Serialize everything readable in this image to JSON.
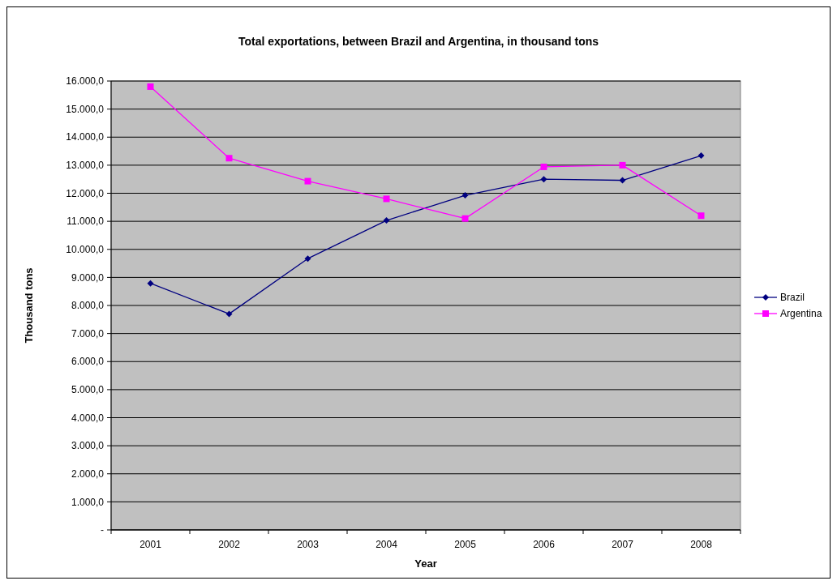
{
  "chart_data": {
    "type": "line",
    "title": "Total exportations, between Brazil and Argentina, in thousand tons",
    "xlabel": "Year",
    "ylabel": "Thousand tons",
    "categories": [
      "2001",
      "2002",
      "2003",
      "2004",
      "2005",
      "2006",
      "2007",
      "2008"
    ],
    "series": [
      {
        "name": "Brazil",
        "color": "#000080",
        "marker": "diamond",
        "values": [
          8790,
          7700,
          9670,
          11030,
          11925,
          12500,
          12460,
          13340
        ]
      },
      {
        "name": "Argentina",
        "color": "#ff00ff",
        "marker": "square",
        "values": [
          15800,
          13250,
          12430,
          11800,
          11100,
          12940,
          13000,
          11200
        ]
      }
    ],
    "ylim": [
      0,
      16000
    ],
    "yticks": [
      {
        "value": 0,
        "label": "-"
      },
      {
        "value": 1000,
        "label": "1.000,0"
      },
      {
        "value": 2000,
        "label": "2.000,0"
      },
      {
        "value": 3000,
        "label": "3.000,0"
      },
      {
        "value": 4000,
        "label": "4.000,0"
      },
      {
        "value": 5000,
        "label": "5.000,0"
      },
      {
        "value": 6000,
        "label": "6.000,0"
      },
      {
        "value": 7000,
        "label": "7.000,0"
      },
      {
        "value": 8000,
        "label": "8.000,0"
      },
      {
        "value": 9000,
        "label": "9.000,0"
      },
      {
        "value": 10000,
        "label": "10.000,0"
      },
      {
        "value": 11000,
        "label": "11.000,0"
      },
      {
        "value": 12000,
        "label": "12.000,0"
      },
      {
        "value": 13000,
        "label": "13.000,0"
      },
      {
        "value": 14000,
        "label": "14.000,0"
      },
      {
        "value": 15000,
        "label": "15.000,0"
      },
      {
        "value": 16000,
        "label": "16.000,0"
      }
    ],
    "grid": "y",
    "legend": "right",
    "line_style": "solid"
  }
}
